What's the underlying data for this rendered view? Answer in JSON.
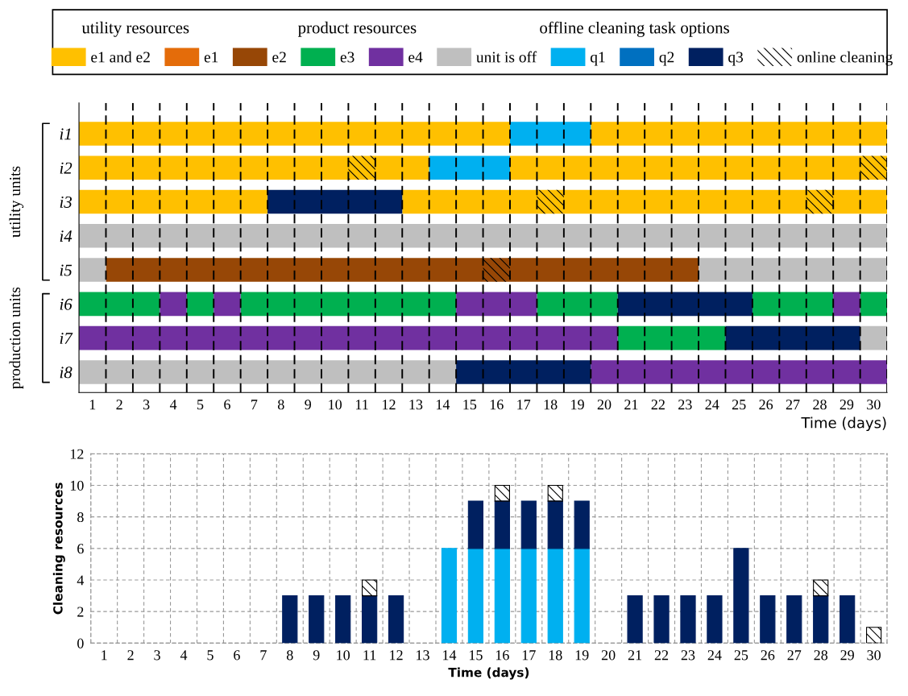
{
  "chart_data": [
    {
      "type": "bar",
      "orientation": "horizontal",
      "xlabel": "Time (days)",
      "categories": [
        "i1",
        "i2",
        "i3",
        "i4",
        "i5",
        "i6",
        "i7",
        "i8"
      ],
      "xlim": [
        0.5,
        30.5
      ],
      "xticks": [
        1,
        2,
        3,
        4,
        5,
        6,
        7,
        8,
        9,
        10,
        11,
        12,
        13,
        14,
        15,
        16,
        17,
        18,
        19,
        20,
        21,
        22,
        23,
        24,
        25,
        26,
        27,
        28,
        29,
        30
      ],
      "legend": "top",
      "annotations": [
        "utility resources",
        "product resources",
        "offline cleaning task options",
        "utility units",
        "production units"
      ],
      "ref_lines": [
        {
          "axis": "x",
          "value": 1.5,
          "line_style": "dashed"
        },
        {
          "axis": "x",
          "value": 2.5,
          "line_style": "dashed"
        },
        {
          "axis": "x",
          "value": 3.5,
          "line_style": "dashed"
        },
        {
          "axis": "x",
          "value": 4.5,
          "line_style": "dashed"
        },
        {
          "axis": "x",
          "value": 5.5,
          "line_style": "dashed"
        },
        {
          "axis": "x",
          "value": 6.5,
          "line_style": "dashed"
        },
        {
          "axis": "x",
          "value": 7.5,
          "line_style": "dashed"
        },
        {
          "axis": "x",
          "value": 8.5,
          "line_style": "dashed"
        },
        {
          "axis": "x",
          "value": 9.5,
          "line_style": "dashed"
        },
        {
          "axis": "x",
          "value": 10.5,
          "line_style": "dashed"
        },
        {
          "axis": "x",
          "value": 11.5,
          "line_style": "dashed"
        },
        {
          "axis": "x",
          "value": 12.5,
          "line_style": "dashed"
        },
        {
          "axis": "x",
          "value": 13.5,
          "line_style": "dashed"
        },
        {
          "axis": "x",
          "value": 14.5,
          "line_style": "dashed"
        },
        {
          "axis": "x",
          "value": 15.5,
          "line_style": "dashed"
        },
        {
          "axis": "x",
          "value": 16.5,
          "line_style": "dashed"
        },
        {
          "axis": "x",
          "value": 17.5,
          "line_style": "dashed"
        },
        {
          "axis": "x",
          "value": 18.5,
          "line_style": "dashed"
        },
        {
          "axis": "x",
          "value": 19.5,
          "line_style": "dashed"
        },
        {
          "axis": "x",
          "value": 20.5,
          "line_style": "dashed"
        },
        {
          "axis": "x",
          "value": 21.5,
          "line_style": "dashed"
        },
        {
          "axis": "x",
          "value": 22.5,
          "line_style": "dashed"
        },
        {
          "axis": "x",
          "value": 23.5,
          "line_style": "dashed"
        },
        {
          "axis": "x",
          "value": 24.5,
          "line_style": "dashed"
        },
        {
          "axis": "x",
          "value": 25.5,
          "line_style": "dashed"
        },
        {
          "axis": "x",
          "value": 26.5,
          "line_style": "dashed"
        },
        {
          "axis": "x",
          "value": 27.5,
          "line_style": "dashed"
        },
        {
          "axis": "x",
          "value": 28.5,
          "line_style": "dashed"
        },
        {
          "axis": "x",
          "value": 29.5,
          "line_style": "dashed"
        },
        {
          "axis": "x",
          "value": 30.5,
          "line_style": "dashed"
        }
      ],
      "series": [
        {
          "name": "e1 and e2",
          "color": "#ffc000",
          "base": [
            0.5,
            0.5,
            0.5,
            null,
            null,
            null,
            null,
            null
          ],
          "values": [
            16,
            13,
            7,
            null,
            null,
            null,
            null,
            null
          ]
        },
        {
          "color": "#ffc000",
          "base": [
            19.5,
            16.5,
            12.5,
            null,
            null,
            null,
            null,
            null
          ],
          "values": [
            11,
            14,
            18,
            null,
            null,
            null,
            null,
            null
          ]
        },
        {
          "name": "e1",
          "color": "#e46c0a",
          "base": [
            null,
            null,
            null,
            null,
            null,
            null,
            null,
            null
          ],
          "values": [
            null,
            null,
            null,
            null,
            null,
            null,
            null,
            null
          ]
        },
        {
          "name": "e2",
          "color": "#974706",
          "base": [
            null,
            null,
            null,
            null,
            1.5,
            null,
            null,
            null
          ],
          "values": [
            null,
            null,
            null,
            null,
            22,
            null,
            null,
            null
          ]
        },
        {
          "name": "e3",
          "color": "#00b050",
          "base": [
            null,
            null,
            null,
            null,
            null,
            0.5,
            20.5,
            null
          ],
          "values": [
            null,
            null,
            null,
            null,
            null,
            3,
            4,
            null
          ]
        },
        {
          "color": "#00b050",
          "base": [
            null,
            null,
            null,
            null,
            null,
            4.5,
            null,
            null
          ],
          "values": [
            null,
            null,
            null,
            null,
            null,
            1,
            null,
            null
          ]
        },
        {
          "color": "#00b050",
          "base": [
            null,
            null,
            null,
            null,
            null,
            6.5,
            null,
            null
          ],
          "values": [
            null,
            null,
            null,
            null,
            null,
            8,
            null,
            null
          ]
        },
        {
          "color": "#00b050",
          "base": [
            null,
            null,
            null,
            null,
            null,
            17.5,
            null,
            null
          ],
          "values": [
            null,
            null,
            null,
            null,
            null,
            3,
            null,
            null
          ]
        },
        {
          "color": "#00b050",
          "base": [
            null,
            null,
            null,
            null,
            null,
            25.5,
            null,
            null
          ],
          "values": [
            null,
            null,
            null,
            null,
            null,
            3,
            null,
            null
          ]
        },
        {
          "color": "#00b050",
          "base": [
            null,
            null,
            null,
            null,
            null,
            29.5,
            null,
            null
          ],
          "values": [
            null,
            null,
            null,
            null,
            null,
            1,
            null,
            null
          ]
        },
        {
          "name": "e4",
          "color": "#7030a0",
          "base": [
            null,
            null,
            null,
            null,
            null,
            3.5,
            0.5,
            19.5
          ],
          "values": [
            null,
            null,
            null,
            null,
            null,
            1,
            20,
            11
          ]
        },
        {
          "color": "#7030a0",
          "base": [
            null,
            null,
            null,
            null,
            null,
            5.5,
            null,
            null
          ],
          "values": [
            null,
            null,
            null,
            null,
            null,
            1,
            null,
            null
          ]
        },
        {
          "color": "#7030a0",
          "base": [
            null,
            null,
            null,
            null,
            null,
            14.5,
            null,
            null
          ],
          "values": [
            null,
            null,
            null,
            null,
            null,
            3,
            null,
            null
          ]
        },
        {
          "color": "#7030a0",
          "base": [
            null,
            null,
            null,
            null,
            null,
            28.5,
            null,
            null
          ],
          "values": [
            null,
            null,
            null,
            null,
            null,
            1,
            null,
            null
          ]
        },
        {
          "name": "unit is off",
          "color": "#bfbfbf",
          "base": [
            null,
            null,
            null,
            0.5,
            0.5,
            null,
            29.5,
            0.5
          ],
          "values": [
            null,
            null,
            null,
            30,
            1,
            null,
            1,
            14
          ]
        },
        {
          "color": "#bfbfbf",
          "base": [
            null,
            null,
            null,
            null,
            23.5,
            null,
            null,
            null
          ],
          "values": [
            null,
            null,
            null,
            null,
            7,
            null,
            null,
            null
          ]
        },
        {
          "name": "q1",
          "color": "#00b0f0",
          "base": [
            16.5,
            13.5,
            null,
            null,
            null,
            null,
            null,
            null
          ],
          "values": [
            3,
            3,
            null,
            null,
            null,
            null,
            null,
            null
          ]
        },
        {
          "name": "q2",
          "color": "#0070c0",
          "base": [
            null,
            null,
            null,
            null,
            null,
            null,
            null,
            null
          ],
          "values": [
            null,
            null,
            null,
            null,
            null,
            null,
            null,
            null
          ]
        },
        {
          "name": "q3",
          "color": "#002060",
          "base": [
            null,
            null,
            7.5,
            null,
            null,
            20.5,
            24.5,
            14.5
          ],
          "values": [
            null,
            null,
            5,
            null,
            null,
            5,
            5,
            5
          ]
        },
        {
          "name": "online cleaning",
          "color": "#000000",
          "marker": "cross",
          "base": [
            null,
            10.5,
            17.5,
            null,
            15.5,
            null,
            null,
            null
          ],
          "values": [
            null,
            1,
            1,
            null,
            1,
            null,
            null,
            null
          ]
        },
        {
          "color": "#000000",
          "marker": "cross",
          "base": [
            null,
            29.5,
            27.5,
            null,
            null,
            null,
            null,
            null
          ],
          "values": [
            null,
            1,
            1,
            null,
            null,
            null,
            null,
            null
          ]
        }
      ]
    },
    {
      "type": "bar",
      "stacked": true,
      "xlabel": "Time (days)",
      "ylabel": "Cleaning resources",
      "categories": [
        "1",
        "2",
        "3",
        "4",
        "5",
        "6",
        "7",
        "8",
        "9",
        "10",
        "11",
        "12",
        "13",
        "14",
        "15",
        "16",
        "17",
        "18",
        "19",
        "20",
        "21",
        "22",
        "23",
        "24",
        "25",
        "26",
        "27",
        "28",
        "29",
        "30"
      ],
      "ylim": [
        0,
        12
      ],
      "yticks": [
        0,
        2,
        4,
        6,
        8,
        10,
        12
      ],
      "grid": true,
      "series": [
        {
          "color": "#00b0f0",
          "values": [
            null,
            null,
            null,
            null,
            null,
            null,
            null,
            null,
            null,
            null,
            null,
            null,
            null,
            6,
            6,
            6,
            6,
            6,
            6,
            null,
            null,
            null,
            null,
            null,
            null,
            null,
            null,
            null,
            null,
            null
          ]
        },
        {
          "color": "#002060",
          "values": [
            null,
            null,
            null,
            null,
            null,
            null,
            null,
            3,
            3,
            3,
            3,
            3,
            null,
            null,
            3,
            3,
            3,
            3,
            3,
            null,
            3,
            3,
            3,
            3,
            6,
            3,
            3,
            3,
            3,
            null
          ]
        },
        {
          "color": "#000000",
          "marker": "cross",
          "values": [
            null,
            null,
            null,
            null,
            null,
            null,
            null,
            null,
            null,
            null,
            1,
            null,
            null,
            null,
            null,
            1,
            null,
            1,
            null,
            null,
            null,
            null,
            null,
            null,
            null,
            null,
            null,
            1,
            null,
            1
          ]
        }
      ]
    }
  ]
}
